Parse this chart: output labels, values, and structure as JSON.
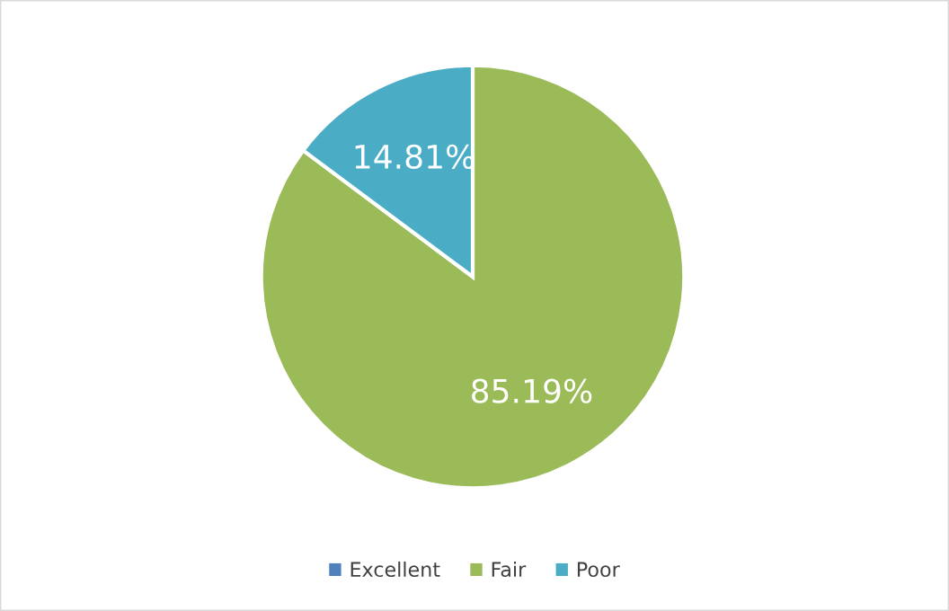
{
  "chart_data": {
    "type": "pie",
    "categories": [
      "Excellent",
      "Fair",
      "Poor"
    ],
    "values": [
      0,
      85.19,
      14.81
    ],
    "colors": [
      "#4f81bd",
      "#9bbb59",
      "#4bacc6"
    ],
    "value_labels": [
      null,
      "85.19%",
      "14.81%"
    ],
    "legend": "bottom"
  }
}
